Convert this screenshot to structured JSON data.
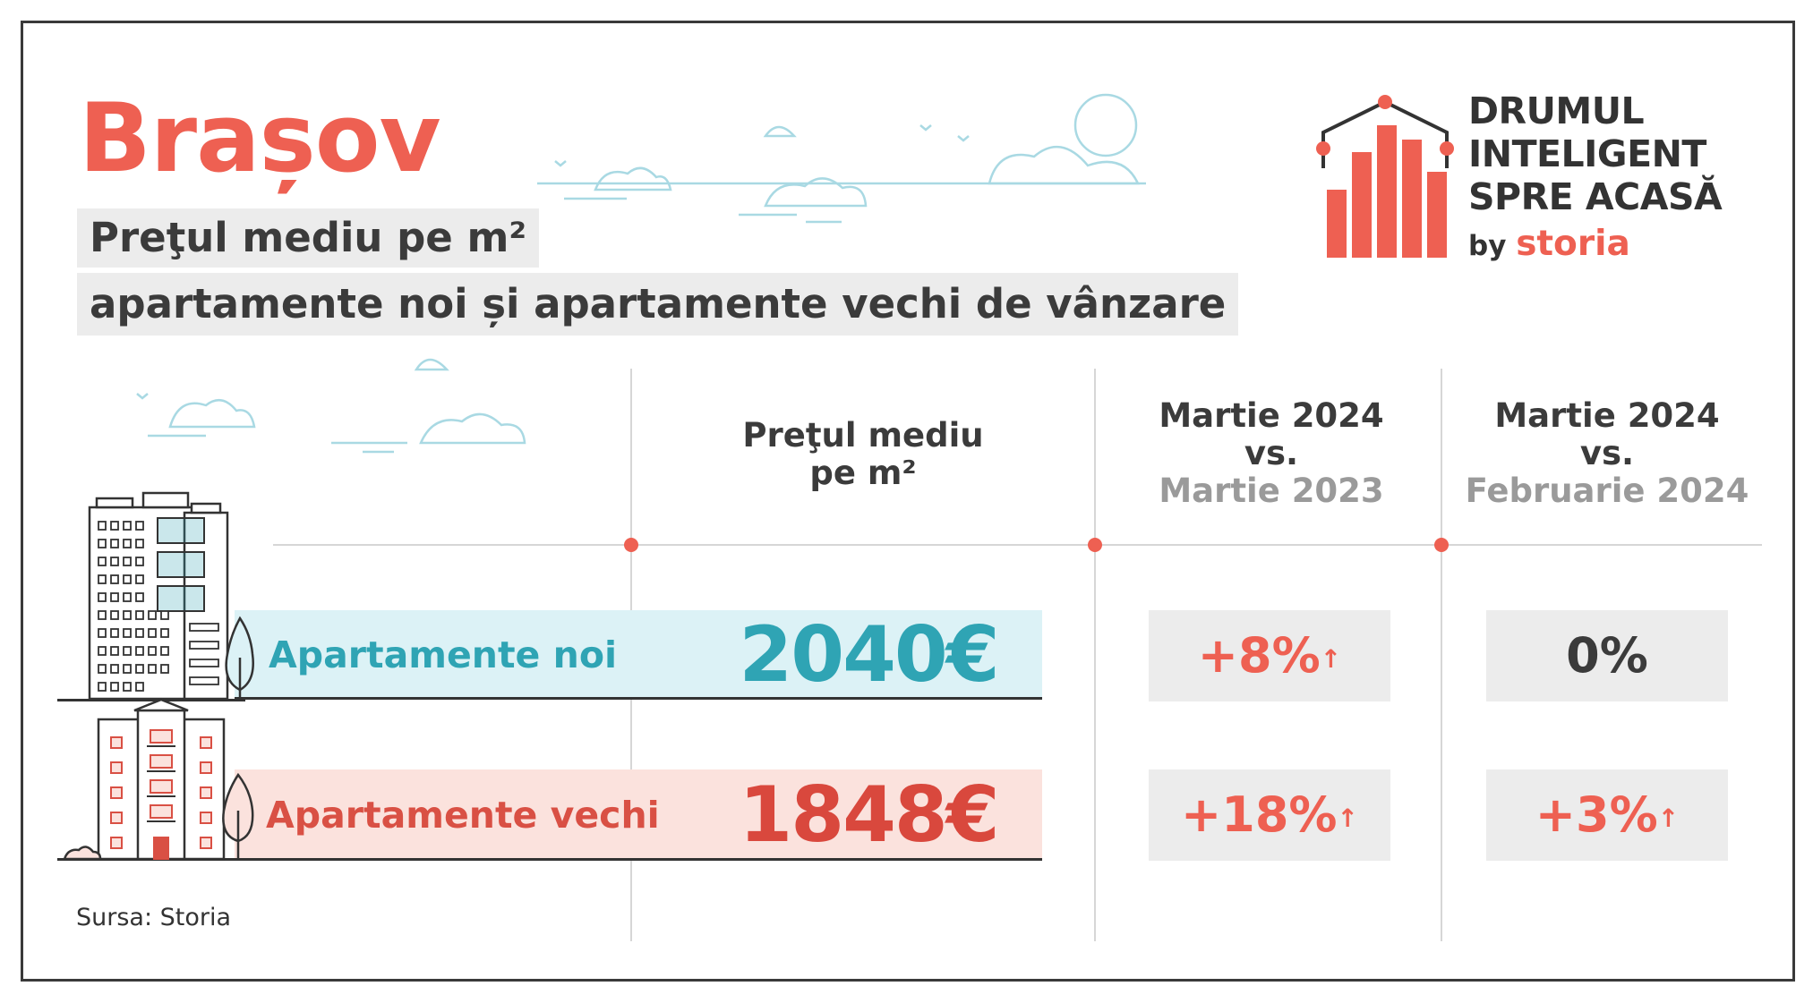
{
  "header": {
    "city": "Brașov",
    "subtitle_line1": "Preţul mediu pe m²",
    "subtitle_line2": "apartamente noi și apartamente vechi de vânzare"
  },
  "brand": {
    "line1": "DRUMUL",
    "line2": "INTELIGENT",
    "line3": "SPRE ACASĂ",
    "by": "by",
    "name": "storia",
    "accent_color": "#ee6052"
  },
  "table": {
    "columns": [
      {
        "line1": "Preţul mediu",
        "line2": "pe m²"
      },
      {
        "line1": "Martie 2024",
        "line2": "vs.",
        "line3": "Martie 2023"
      },
      {
        "line1": "Martie 2024",
        "line2": "vs.",
        "line3": "Februarie 2024"
      }
    ],
    "rows": [
      {
        "label": "Apartamente noi",
        "price": "2040€",
        "yoy": "+8%",
        "yoy_arrow": "↑",
        "mom": "0%",
        "mom_arrow": "",
        "color": "#2fa4b4"
      },
      {
        "label": "Apartamente vechi",
        "price": "1848€",
        "yoy": "+18%",
        "yoy_arrow": "↑",
        "mom": "+3%",
        "mom_arrow": "↑",
        "color": "#d9483d"
      }
    ]
  },
  "footer": {
    "source": "Sursa: Storia"
  }
}
